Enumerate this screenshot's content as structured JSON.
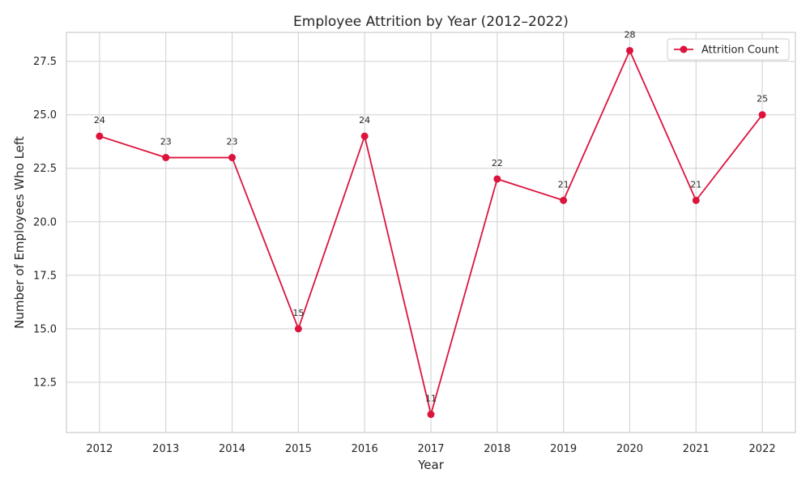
{
  "chart_data": {
    "type": "line",
    "title": "Employee Attrition by Year (2012–2022)",
    "xlabel": "Year",
    "ylabel": "Number of Employees Who Left",
    "x": [
      "2012",
      "2013",
      "2014",
      "2015",
      "2016",
      "2017",
      "2018",
      "2019",
      "2020",
      "2021",
      "2022"
    ],
    "series": [
      {
        "name": "Attrition Count",
        "values": [
          24,
          23,
          23,
          15,
          24,
          11,
          22,
          21,
          28,
          21,
          25
        ],
        "color": "#dc143c"
      }
    ],
    "data_labels": [
      "24",
      "23",
      "23",
      "15",
      "24",
      "11",
      "22",
      "21",
      "28",
      "21",
      "25"
    ],
    "ylim": [
      10.15,
      28.85
    ],
    "y_ticks": [
      12.5,
      15.0,
      17.5,
      20.0,
      22.5,
      25.0,
      27.5
    ],
    "y_tick_labels": [
      "12.5",
      "15.0",
      "17.5",
      "20.0",
      "22.5",
      "25.0",
      "27.5"
    ],
    "grid": true,
    "legend_position": "top-right",
    "colors": {
      "grid": "#d6d6d6",
      "frame": "#cccccc",
      "text": "#262626"
    }
  }
}
